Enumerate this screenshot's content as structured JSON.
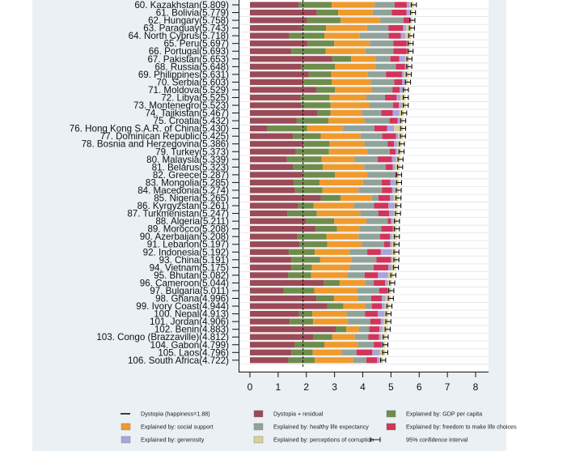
{
  "chart_data": {
    "type": "bar",
    "orientation": "horizontal",
    "stacked": true,
    "xlim": [
      0,
      8
    ],
    "xticks": [
      0,
      1,
      2,
      3,
      4,
      5,
      6,
      7,
      8
    ],
    "grid": false,
    "legend_position": "bottom",
    "dystopia_value": 1.88,
    "ci_halfwidth": 0.09,
    "series": [
      {
        "key": "res",
        "name": "Dystopia + residual",
        "color": "#9b4a57"
      },
      {
        "key": "gdp",
        "name": "Explained by: GDP per capita",
        "color": "#6e8c4c"
      },
      {
        "key": "soc",
        "name": "Explained by: social support",
        "color": "#f09a2c"
      },
      {
        "key": "hle",
        "name": "Explained by: healthy life expectancy",
        "color": "#8fa39b"
      },
      {
        "key": "free",
        "name": "Explained by: freedom to make life choices",
        "color": "#d2345a"
      },
      {
        "key": "gen",
        "name": "Explained by: generosity",
        "color": "#a9a4dc"
      },
      {
        "key": "corr",
        "name": "Explained by: perceptions of corruption",
        "color": "#d8d096"
      }
    ],
    "legend": [
      {
        "type": "line",
        "label": "Dystopia (happiness=1.88)"
      },
      {
        "type": "swatch",
        "series": 0,
        "label": "Dystopia + residual"
      },
      {
        "type": "swatch",
        "series": 1,
        "label": "Explained by: GDP per capita"
      },
      {
        "type": "swatch",
        "series": 2,
        "label": "Explained by: social support"
      },
      {
        "type": "swatch",
        "series": 3,
        "label": "Explained by: healthy life expectancy"
      },
      {
        "type": "swatch",
        "series": 4,
        "label": "Explained by: freedom to make life choices"
      },
      {
        "type": "swatch",
        "series": 5,
        "label": "Explained by: generosity"
      },
      {
        "type": "swatch",
        "series": 6,
        "label": "Explained by: perceptions of corruption"
      },
      {
        "type": "ci",
        "label": "95% confidence interval"
      }
    ],
    "rows": [
      {
        "rank": 60,
        "country": "Kazakhstan",
        "score": "5.809",
        "v": [
          1.74,
          1.16,
          1.52,
          0.71,
          0.43,
          0.1,
          0.15
        ]
      },
      {
        "rank": 61,
        "country": "Bolivia",
        "score": "5.779",
        "v": [
          2.37,
          0.76,
          1.22,
          0.68,
          0.52,
          0.1,
          0.12
        ]
      },
      {
        "rank": 62,
        "country": "Hungary",
        "score": "5.758",
        "v": [
          2.02,
          1.19,
          1.4,
          0.83,
          0.22,
          0.05,
          0.05
        ]
      },
      {
        "rank": 63,
        "country": "Paraguay",
        "score": "5.743",
        "v": [
          1.85,
          0.85,
          1.45,
          0.76,
          0.52,
          0.11,
          0.2
        ]
      },
      {
        "rank": 64,
        "country": "North Cyprus",
        "score": "5.718",
        "v": [
          1.4,
          1.24,
          1.25,
          1.03,
          0.43,
          0.16,
          0.21
        ]
      },
      {
        "rank": 65,
        "country": "Peru",
        "score": "5.697",
        "v": [
          2.04,
          0.95,
          1.26,
          0.84,
          0.47,
          0.07,
          0.07
        ]
      },
      {
        "rank": 66,
        "country": "Portugal",
        "score": "5.693",
        "v": [
          1.47,
          1.21,
          1.41,
          1.0,
          0.47,
          0.06,
          0.07
        ]
      },
      {
        "rank": 67,
        "country": "Pakistan",
        "score": "5.653",
        "v": [
          2.92,
          0.67,
          0.85,
          0.54,
          0.31,
          0.21,
          0.15
        ]
      },
      {
        "rank": 68,
        "country": "Russia",
        "score": "5.648",
        "v": [
          1.83,
          1.18,
          1.43,
          0.73,
          0.33,
          0.1,
          0.05
        ]
      },
      {
        "rank": 69,
        "country": "Philippines",
        "score": "5.631",
        "v": [
          2.09,
          0.79,
          1.3,
          0.64,
          0.57,
          0.08,
          0.16
        ]
      },
      {
        "rank": 70,
        "country": "Serbia",
        "score": "5.603",
        "v": [
          1.9,
          1.0,
          1.38,
          0.84,
          0.28,
          0.12,
          0.08
        ]
      },
      {
        "rank": 71,
        "country": "Moldova",
        "score": "5.529",
        "v": [
          2.35,
          0.67,
          1.31,
          0.72,
          0.26,
          0.12,
          0.1
        ]
      },
      {
        "rank": 72,
        "country": "Libya",
        "score": "5.525",
        "v": [
          1.8,
          1.03,
          1.3,
          0.66,
          0.41,
          0.14,
          0.18
        ]
      },
      {
        "rank": 73,
        "country": "Montenegro",
        "score": "5.523",
        "v": [
          1.82,
          1.04,
          1.37,
          0.84,
          0.21,
          0.1,
          0.14
        ]
      },
      {
        "rank": 74,
        "country": "Tajikistan",
        "score": "5.467",
        "v": [
          2.4,
          0.46,
          1.1,
          0.7,
          0.4,
          0.23,
          0.17
        ]
      },
      {
        "rank": 75,
        "country": "Croatia",
        "score": "5.432",
        "v": [
          1.66,
          1.12,
          1.28,
          0.89,
          0.29,
          0.08,
          0.11
        ]
      },
      {
        "rank": 76,
        "country": "Hong Kong S.A.R. of China",
        "score": "5.430",
        "v": [
          0.62,
          1.41,
          1.26,
          1.12,
          0.45,
          0.25,
          0.32
        ]
      },
      {
        "rank": 77,
        "country": "Dominican Republic",
        "score": "5.425",
        "v": [
          1.54,
          0.97,
          1.41,
          0.77,
          0.49,
          0.08,
          0.17
        ]
      },
      {
        "rank": 78,
        "country": "Bosnia and Herzegovina",
        "score": "5.386",
        "v": [
          1.9,
          0.93,
          1.23,
          0.82,
          0.23,
          0.12,
          0.15
        ]
      },
      {
        "rank": 79,
        "country": "Turkey",
        "score": "5.373",
        "v": [
          1.63,
          1.17,
          1.36,
          0.8,
          0.2,
          0.07,
          0.14
        ]
      },
      {
        "rank": 80,
        "country": "Malaysia",
        "score": "5.339",
        "v": [
          1.31,
          1.23,
          1.17,
          0.82,
          0.51,
          0.14,
          0.15
        ]
      },
      {
        "rank": 81,
        "country": "Belarus",
        "score": "5.323",
        "v": [
          1.52,
          1.06,
          1.47,
          0.76,
          0.25,
          0.09,
          0.17
        ]
      },
      {
        "rank": 82,
        "country": "Greece",
        "score": "5.287",
        "v": [
          1.85,
          1.17,
          1.14,
          0.99,
          0.05,
          0.04,
          0.05
        ]
      },
      {
        "rank": 83,
        "country": "Mongolia",
        "score": "5.285",
        "v": [
          1.55,
          0.92,
          1.54,
          0.66,
          0.31,
          0.17,
          0.13
        ]
      },
      {
        "rank": 84,
        "country": "Macedonia",
        "score": "5.274",
        "v": [
          1.6,
          0.97,
          1.28,
          0.83,
          0.36,
          0.1,
          0.13
        ]
      },
      {
        "rank": 85,
        "country": "Nigeria",
        "score": "5.265",
        "v": [
          2.52,
          0.69,
          1.11,
          0.24,
          0.41,
          0.13,
          0.17
        ]
      },
      {
        "rank": 86,
        "country": "Kyrgyzstan",
        "score": "5.261",
        "v": [
          1.71,
          0.55,
          1.42,
          0.72,
          0.51,
          0.22,
          0.12
        ]
      },
      {
        "rank": 87,
        "country": "Turkmenistan",
        "score": "5.247",
        "v": [
          1.33,
          1.04,
          1.54,
          0.64,
          0.39,
          0.17,
          0.13
        ]
      },
      {
        "rank": 88,
        "country": "Algeria",
        "score": "5.211",
        "v": [
          1.99,
          1.0,
          1.14,
          0.76,
          0.11,
          0.07,
          0.14
        ]
      },
      {
        "rank": 89,
        "country": "Morocco",
        "score": "5.208",
        "v": [
          2.33,
          0.76,
          0.79,
          0.78,
          0.41,
          0.05,
          0.09
        ]
      },
      {
        "rank": 90,
        "country": "Azerbaijan",
        "score": "5.208",
        "v": [
          1.68,
          1.03,
          1.14,
          0.76,
          0.35,
          0.08,
          0.17
        ]
      },
      {
        "rank": 91,
        "country": "Lebanon",
        "score": "5.197",
        "v": [
          1.76,
          0.98,
          1.22,
          0.8,
          0.21,
          0.07,
          0.16
        ]
      },
      {
        "rank": 92,
        "country": "Indonesia",
        "score": "5.192",
        "v": [
          1.38,
          0.92,
          1.22,
          0.64,
          0.48,
          0.4,
          0.15
        ]
      },
      {
        "rank": 93,
        "country": "China",
        "score": "5.191",
        "v": [
          1.47,
          1.02,
          1.12,
          0.87,
          0.52,
          0.05,
          0.15
        ]
      },
      {
        "rank": 94,
        "country": "Vietnam",
        "score": "5.175",
        "v": [
          1.47,
          0.73,
          1.33,
          0.85,
          0.53,
          0.12,
          0.14
        ]
      },
      {
        "rank": 95,
        "country": "Bhutan",
        "score": "5.082",
        "v": [
          1.35,
          0.82,
          1.3,
          0.6,
          0.47,
          0.36,
          0.18
        ]
      },
      {
        "rank": 96,
        "country": "Cameroon",
        "score": "5.044",
        "v": [
          2.63,
          0.55,
          0.9,
          0.31,
          0.4,
          0.1,
          0.15
        ]
      },
      {
        "rank": 97,
        "country": "Bulgaria",
        "score": "5.011",
        "v": [
          1.19,
          1.09,
          1.52,
          0.78,
          0.31,
          0.04,
          0.08
        ]
      },
      {
        "rank": 98,
        "country": "Ghana",
        "score": "4.996",
        "v": [
          2.36,
          0.62,
          0.85,
          0.47,
          0.38,
          0.13,
          0.18
        ]
      },
      {
        "rank": 99,
        "country": "Ivory Coast",
        "score": "4.944",
        "v": [
          2.74,
          0.57,
          0.78,
          0.24,
          0.35,
          0.1,
          0.16
        ]
      },
      {
        "rank": 100,
        "country": "Nepal",
        "score": "4.913",
        "v": [
          1.74,
          0.47,
          1.22,
          0.65,
          0.45,
          0.24,
          0.15
        ]
      },
      {
        "rank": 101,
        "country": "Jordan",
        "score": "4.906",
        "v": [
          1.41,
          0.83,
          1.22,
          0.81,
          0.37,
          0.1,
          0.17
        ]
      },
      {
        "rank": 102,
        "country": "Benin",
        "score": "4.883",
        "v": [
          3.04,
          0.38,
          0.45,
          0.36,
          0.36,
          0.11,
          0.18
        ]
      },
      {
        "rank": 103,
        "country": "Congo (Brazzaville)",
        "score": "4.812",
        "v": [
          2.26,
          0.66,
          0.8,
          0.48,
          0.38,
          0.07,
          0.16
        ]
      },
      {
        "rank": 104,
        "country": "Gabon",
        "score": "4.799",
        "v": [
          1.6,
          1.04,
          1.19,
          0.56,
          0.28,
          0.04,
          0.09
        ]
      },
      {
        "rank": 105,
        "country": "Laos",
        "score": "4.796",
        "v": [
          1.47,
          0.76,
          1.02,
          0.53,
          0.56,
          0.27,
          0.19
        ]
      },
      {
        "rank": 106,
        "country": "South Africa",
        "score": "4.722",
        "v": [
          1.36,
          0.94,
          1.36,
          0.47,
          0.38,
          0.1,
          0.11
        ]
      }
    ]
  }
}
